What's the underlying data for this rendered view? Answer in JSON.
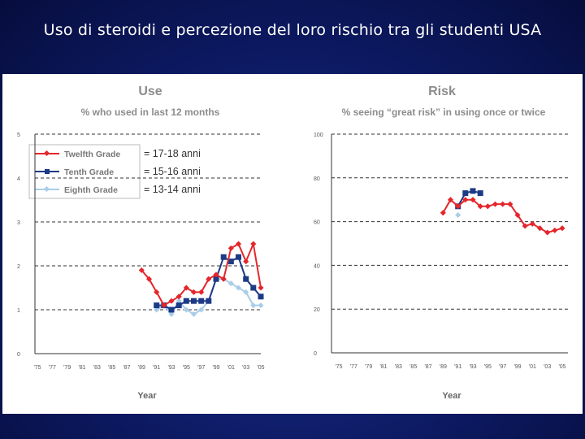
{
  "slide": {
    "title": "Uso di steroidi e percezione del loro rischio tra gli studenti USA"
  },
  "annotations": [
    "= 17-18 anni",
    "= 15-16 anni",
    "= 13-14 anni"
  ],
  "colors": {
    "twelfth": "#e4262b",
    "tenth": "#1c3a86",
    "eighth": "#a9cde9",
    "slide_bg": "#0d1a63"
  },
  "chart_data": [
    {
      "type": "line",
      "title": "Use",
      "subtitle": "% who used in last 12 months",
      "xlabel": "Year",
      "ylabel": "",
      "ylim": [
        0,
        5
      ],
      "yticks": [
        0,
        1,
        2,
        3,
        4,
        5
      ],
      "xlim": [
        1975,
        2005
      ],
      "xticks": [
        "'75",
        "'77",
        "'79",
        "'81",
        "'83",
        "'85",
        "'87",
        "'89",
        "'91",
        "'93",
        "'95",
        "'97",
        "'99",
        "'01",
        "'03",
        "'05"
      ],
      "grid": "dashed horizontal",
      "legend_position": "top-left",
      "series": [
        {
          "name": "Twelfth Grade",
          "color_key": "twelfth",
          "marker": "diamond",
          "x": [
            1989,
            1990,
            1991,
            1992,
            1993,
            1994,
            1995,
            1996,
            1997,
            1998,
            1999,
            2000,
            2001,
            2002,
            2003,
            2004,
            2005
          ],
          "values": [
            1.9,
            1.7,
            1.4,
            1.1,
            1.2,
            1.3,
            1.5,
            1.4,
            1.4,
            1.7,
            1.8,
            1.7,
            2.4,
            2.5,
            2.1,
            2.5,
            1.5
          ]
        },
        {
          "name": "Tenth Grade",
          "color_key": "tenth",
          "marker": "square",
          "x": [
            1991,
            1992,
            1993,
            1994,
            1995,
            1996,
            1997,
            1998,
            1999,
            2000,
            2001,
            2002,
            2003,
            2004,
            2005
          ],
          "values": [
            1.1,
            1.1,
            1.0,
            1.1,
            1.2,
            1.2,
            1.2,
            1.2,
            1.7,
            2.2,
            2.1,
            2.2,
            1.7,
            1.5,
            1.3
          ]
        },
        {
          "name": "Eighth Grade",
          "color_key": "eighth",
          "marker": "diamond",
          "x": [
            1991,
            1992,
            1993,
            1994,
            1995,
            1996,
            1997,
            1998,
            1999,
            2000,
            2001,
            2002,
            2003,
            2004,
            2005
          ],
          "values": [
            1.0,
            1.1,
            0.9,
            1.2,
            1.0,
            0.9,
            1.0,
            1.2,
            1.7,
            1.7,
            1.6,
            1.5,
            1.4,
            1.1,
            1.1
          ]
        }
      ]
    },
    {
      "type": "line",
      "title": "Risk",
      "subtitle": "% seeing “great risk” in using once or twice",
      "xlabel": "Year",
      "ylabel": "",
      "ylim": [
        0,
        100
      ],
      "yticks": [
        0,
        20,
        40,
        60,
        80,
        100
      ],
      "xlim": [
        1975,
        2005
      ],
      "xticks": [
        "'75",
        "'77",
        "'79",
        "'81",
        "'83",
        "'85",
        "'87",
        "'89",
        "'91",
        "'93",
        "'95",
        "'97",
        "'99",
        "'01",
        "'03",
        "'05"
      ],
      "grid": "dashed horizontal",
      "series": [
        {
          "name": "Twelfth Grade",
          "color_key": "twelfth",
          "marker": "diamond",
          "x": [
            1989,
            1990,
            1991,
            1992,
            1993,
            1994,
            1995,
            1996,
            1997,
            1998,
            1999,
            2000,
            2001,
            2002,
            2003,
            2004,
            2005
          ],
          "values": [
            64,
            70,
            67,
            70,
            70,
            67,
            67,
            68,
            68,
            68,
            63,
            58,
            59,
            57,
            55,
            56,
            57
          ]
        },
        {
          "name": "Tenth Grade",
          "color_key": "tenth",
          "marker": "square",
          "x": [
            1991,
            1992,
            1993,
            1994
          ],
          "values": [
            67,
            73,
            74,
            73
          ]
        },
        {
          "name": "Eighth Grade",
          "color_key": "eighth",
          "marker": "diamond",
          "x": [
            1991
          ],
          "values": [
            63
          ]
        }
      ]
    }
  ]
}
